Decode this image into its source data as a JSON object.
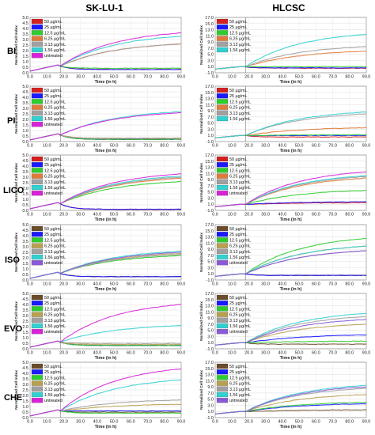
{
  "columns": [
    "SK-LU-1",
    "HLCSC"
  ],
  "rows": [
    "BI",
    "PI",
    "LICO",
    "ISO",
    "EVO",
    "CHE"
  ],
  "chart_data": {
    "type": "line",
    "xlabel": "Time (in h)",
    "ylabel": "Normalized Cell Index",
    "xlim": [
      0,
      90
    ],
    "x_ticks": [
      "0.0",
      "10.0",
      "20.0",
      "30.0",
      "40.0",
      "50.0",
      "60.0",
      "70.0",
      "80.0",
      "90.0"
    ],
    "left_y_ticks": [
      "0.0",
      "0.5",
      "1.0",
      "1.5",
      "2.0",
      "2.5",
      "3.0",
      "3.5",
      "4.0",
      "4.5",
      "5.0"
    ],
    "right_y_ticks": [
      "-1.0",
      "1.0",
      "3.0",
      "5.0",
      "7.0",
      "9.0",
      "11.0",
      "13.0",
      "15.0",
      "17.0"
    ],
    "left_ylim": [
      0,
      5
    ],
    "right_ylim": [
      -1,
      17
    ],
    "series_colors": [
      "#d42020",
      "#1a1aff",
      "#2ecc2e",
      "#e07a3a",
      "#a0a0a0",
      "#33d0d0",
      "#d822d8"
    ],
    "panels": [
      {
        "row": "BI",
        "column": "SK-LU-1",
        "legend": [
          "50 µg/mL",
          "25 µg/mL",
          "12.5 µg/mL",
          "6.25 µg/mL",
          "3.13 µg/mL",
          "1.56 µg/mL",
          "untreated"
        ],
        "colors": [
          "#d42020",
          "#1a1aff",
          "#2ecc2e",
          "#e07a3a",
          "#a0a0a0",
          "#33d0d0",
          "#d822d8"
        ],
        "end_values": [
          0.3,
          0.3,
          0.4,
          2.6,
          2.6,
          3.3,
          3.6
        ]
      },
      {
        "row": "BI",
        "column": "HLCSC",
        "legend": [
          "50 µg/mL",
          "25 µg/mL",
          "12.5 µg/mL",
          "6.25 µg/mL",
          "3.13 µg/mL",
          "1.56 µg/mL"
        ],
        "colors": [
          "#d42020",
          "#1a1aff",
          "#2ecc2e",
          "#e07a3a",
          "#a0a0a0",
          "#33d0d0"
        ],
        "end_values": [
          0.5,
          0.6,
          1.0,
          6.0,
          7.5,
          11.5
        ]
      },
      {
        "row": "PI",
        "column": "SK-LU-1",
        "legend": [
          "50 µg/mL",
          "25 µg/mL",
          "12.5 µg/mL",
          "6.25 µg/mL",
          "3.13 µg/mL",
          "1.56 µg/mL",
          "untreated"
        ],
        "colors": [
          "#d42020",
          "#1a1aff",
          "#2ecc2e",
          "#e07a3a",
          "#a0a0a0",
          "#33d0d0",
          "#d822d8"
        ],
        "end_values": [
          0.2,
          0.2,
          0.2,
          0.3,
          0.3,
          2.7,
          2.6
        ]
      },
      {
        "row": "PI",
        "column": "HLCSC",
        "legend": [
          "50 µg/mL",
          "25 µg/mL",
          "12.5 µg/mL",
          "6.25 µg/mL",
          "3.13 µg/mL",
          "1.56 µg/mL"
        ],
        "colors": [
          "#d42020",
          "#1a1aff",
          "#2ecc2e",
          "#e07a3a",
          "#a0a0a0",
          "#33d0d0"
        ],
        "end_values": [
          0.5,
          1.0,
          1.2,
          3.5,
          8.0,
          8.6
        ]
      },
      {
        "row": "LICO",
        "column": "SK-LU-1",
        "legend": [
          "50 µg/mL",
          "25 µg/mL",
          "12.5 µg/mL",
          "6.25 µg/mL",
          "3.13 µg/mL",
          "1.56 µg/mL",
          "untreated"
        ],
        "colors": [
          "#d42020",
          "#1a1aff",
          "#2ecc2e",
          "#e07a3a",
          "#a0a0a0",
          "#33d0d0",
          "#d822d8"
        ],
        "end_values": [
          0.1,
          0.1,
          2.6,
          2.9,
          3.0,
          3.1,
          3.3
        ]
      },
      {
        "row": "LICO",
        "column": "HLCSC",
        "legend": [
          "50 µg/mL",
          "25 µg/mL",
          "12.5 µg/mL",
          "6.25 µg/mL",
          "3.13 µg/mL",
          "1.56 µg/mL",
          "untreated"
        ],
        "colors": [
          "#d42020",
          "#1a1aff",
          "#2ecc2e",
          "#e07a3a",
          "#a0a0a0",
          "#33d0d0",
          "#d822d8"
        ],
        "end_values": [
          1.5,
          1.8,
          5.5,
          9.5,
          10.0,
          10.3,
          11.5
        ]
      },
      {
        "row": "ISO",
        "column": "SK-LU-1",
        "legend": [
          "50 µg/mL",
          "25 µg/mL",
          "12.5 µg/mL",
          "6.25 µg/mL",
          "3.13 µg/mL",
          "1.56 µg/mL",
          "untreated"
        ],
        "colors": [
          "#6b4c2a",
          "#1a1aff",
          "#2ecc2e",
          "#b8a050",
          "#a0a0a0",
          "#33d0d0",
          "#8a5ad8"
        ],
        "end_values": [
          0.3,
          0.3,
          2.2,
          2.4,
          2.3,
          2.6,
          2.5
        ]
      },
      {
        "row": "ISO",
        "column": "HLCSC",
        "legend": [
          "50 µg/mL",
          "25 µg/mL",
          "12.5 µg/mL",
          "6.25 µg/mL",
          "3.13 µg/mL",
          "1.56 µg/mL",
          "untreated"
        ],
        "colors": [
          "#6b4c2a",
          "#1a1aff",
          "#2ecc2e",
          "#b8a050",
          "#a0a0a0",
          "#33d0d0",
          "#8a5ad8"
        ],
        "end_values": [
          0.5,
          0.5,
          12.5,
          10.0,
          8.5,
          10.0,
          8.5
        ]
      },
      {
        "row": "EVO",
        "column": "SK-LU-1",
        "legend": [
          "50 µg/mL",
          "25 µg/mL",
          "12.5 µg/mL",
          "6.25 µg/mL",
          "3.13 µg/mL",
          "1.56 µg/mL",
          "untreated"
        ],
        "colors": [
          "#6b4c2a",
          "#1a1aff",
          "#2ecc2e",
          "#b8a050",
          "#a0a0a0",
          "#33d0d0",
          "#d822d8"
        ],
        "end_values": [
          0.3,
          0.3,
          0.3,
          0.4,
          0.5,
          2.1,
          4.0
        ]
      },
      {
        "row": "EVO",
        "column": "HLCSC",
        "legend": [
          "50 µg/mL",
          "25 µg/mL",
          "12.5 µg/mL",
          "6.25 µg/mL",
          "3.13 µg/mL",
          "1.56 µg/mL",
          "untreated"
        ],
        "colors": [
          "#6b4c2a",
          "#1a1aff",
          "#2ecc2e",
          "#b8a050",
          "#a0a0a0",
          "#33d0d0",
          "#8a5ad8"
        ],
        "end_values": [
          0.5,
          3.5,
          1.5,
          7.0,
          9.5,
          10.5,
          8.5
        ]
      },
      {
        "row": "CHE",
        "column": "SK-LU-1",
        "legend": [
          "50 µg/mL",
          "25 µg/mL",
          "12.5 µg/mL",
          "6.25 µg/mL",
          "3.13 µg/mL",
          "1.56 µg/mL",
          "untreated"
        ],
        "colors": [
          "#6b4c2a",
          "#1a1aff",
          "#2ecc2e",
          "#b8a050",
          "#a0a0a0",
          "#33d0d0",
          "#d822d8"
        ],
        "end_values": [
          0.5,
          0.6,
          0.4,
          1.2,
          1.6,
          3.4,
          4.4
        ]
      },
      {
        "row": "CHE",
        "column": "HLCSC",
        "legend": [
          "50 µg/mL",
          "25 µg/mL",
          "12.5 µg/mL",
          "6.25 µg/mL",
          "3.13 µg/mL",
          "1.56 µg/mL",
          "untreated"
        ],
        "colors": [
          "#6b4c2a",
          "#1a1aff",
          "#2ecc2e",
          "#b8a050",
          "#a0a0a0",
          "#33d0d0",
          "#8a5ad8"
        ],
        "end_values": [
          1.5,
          3.5,
          4.0,
          6.5,
          8.5,
          9.5,
          9.0
        ]
      }
    ]
  }
}
